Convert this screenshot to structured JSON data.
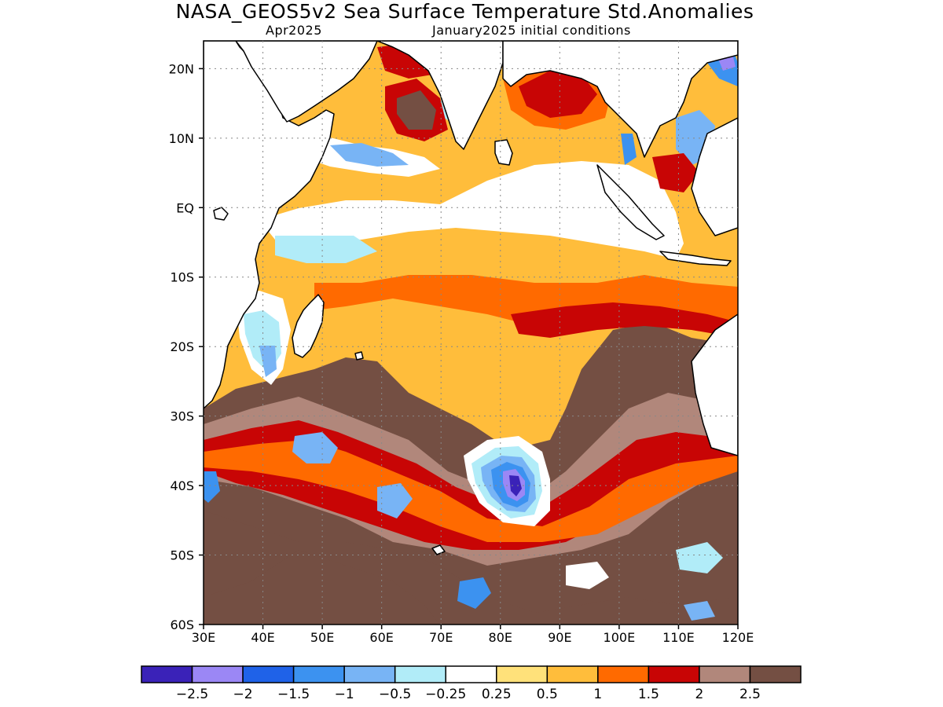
{
  "title": "NASA_GEOS5v2 Sea Surface Temperature Std.Anomalies",
  "subtitle_left": "Apr2025",
  "subtitle_right": "January2025 initial conditions",
  "map": {
    "lon_range": [
      30,
      120
    ],
    "lat_range": [
      -60,
      24
    ],
    "grid": "dotted",
    "lon_ticks": [
      "30E",
      "40E",
      "50E",
      "60E",
      "70E",
      "80E",
      "90E",
      "100E",
      "110E",
      "120E"
    ],
    "lat_ticks": [
      "20N",
      "10N",
      "EQ",
      "10S",
      "20S",
      "30S",
      "40S",
      "50S",
      "60S"
    ]
  },
  "colorbar": {
    "colors": [
      "#3a22b8",
      "#9b87f5",
      "#1f62e8",
      "#3c92f0",
      "#78b4f5",
      "#b1ecf8",
      "#ffffff",
      "#ffe17a",
      "#ffbd3b",
      "#ff6a00",
      "#c80505",
      "#b1877b",
      "#744f43"
    ],
    "labels": [
      "−2.5",
      "−2",
      "−1.5",
      "−1",
      "−0.5",
      "−0.25",
      "0.25",
      "0.5",
      "1",
      "1.5",
      "2",
      "2.5"
    ]
  }
}
